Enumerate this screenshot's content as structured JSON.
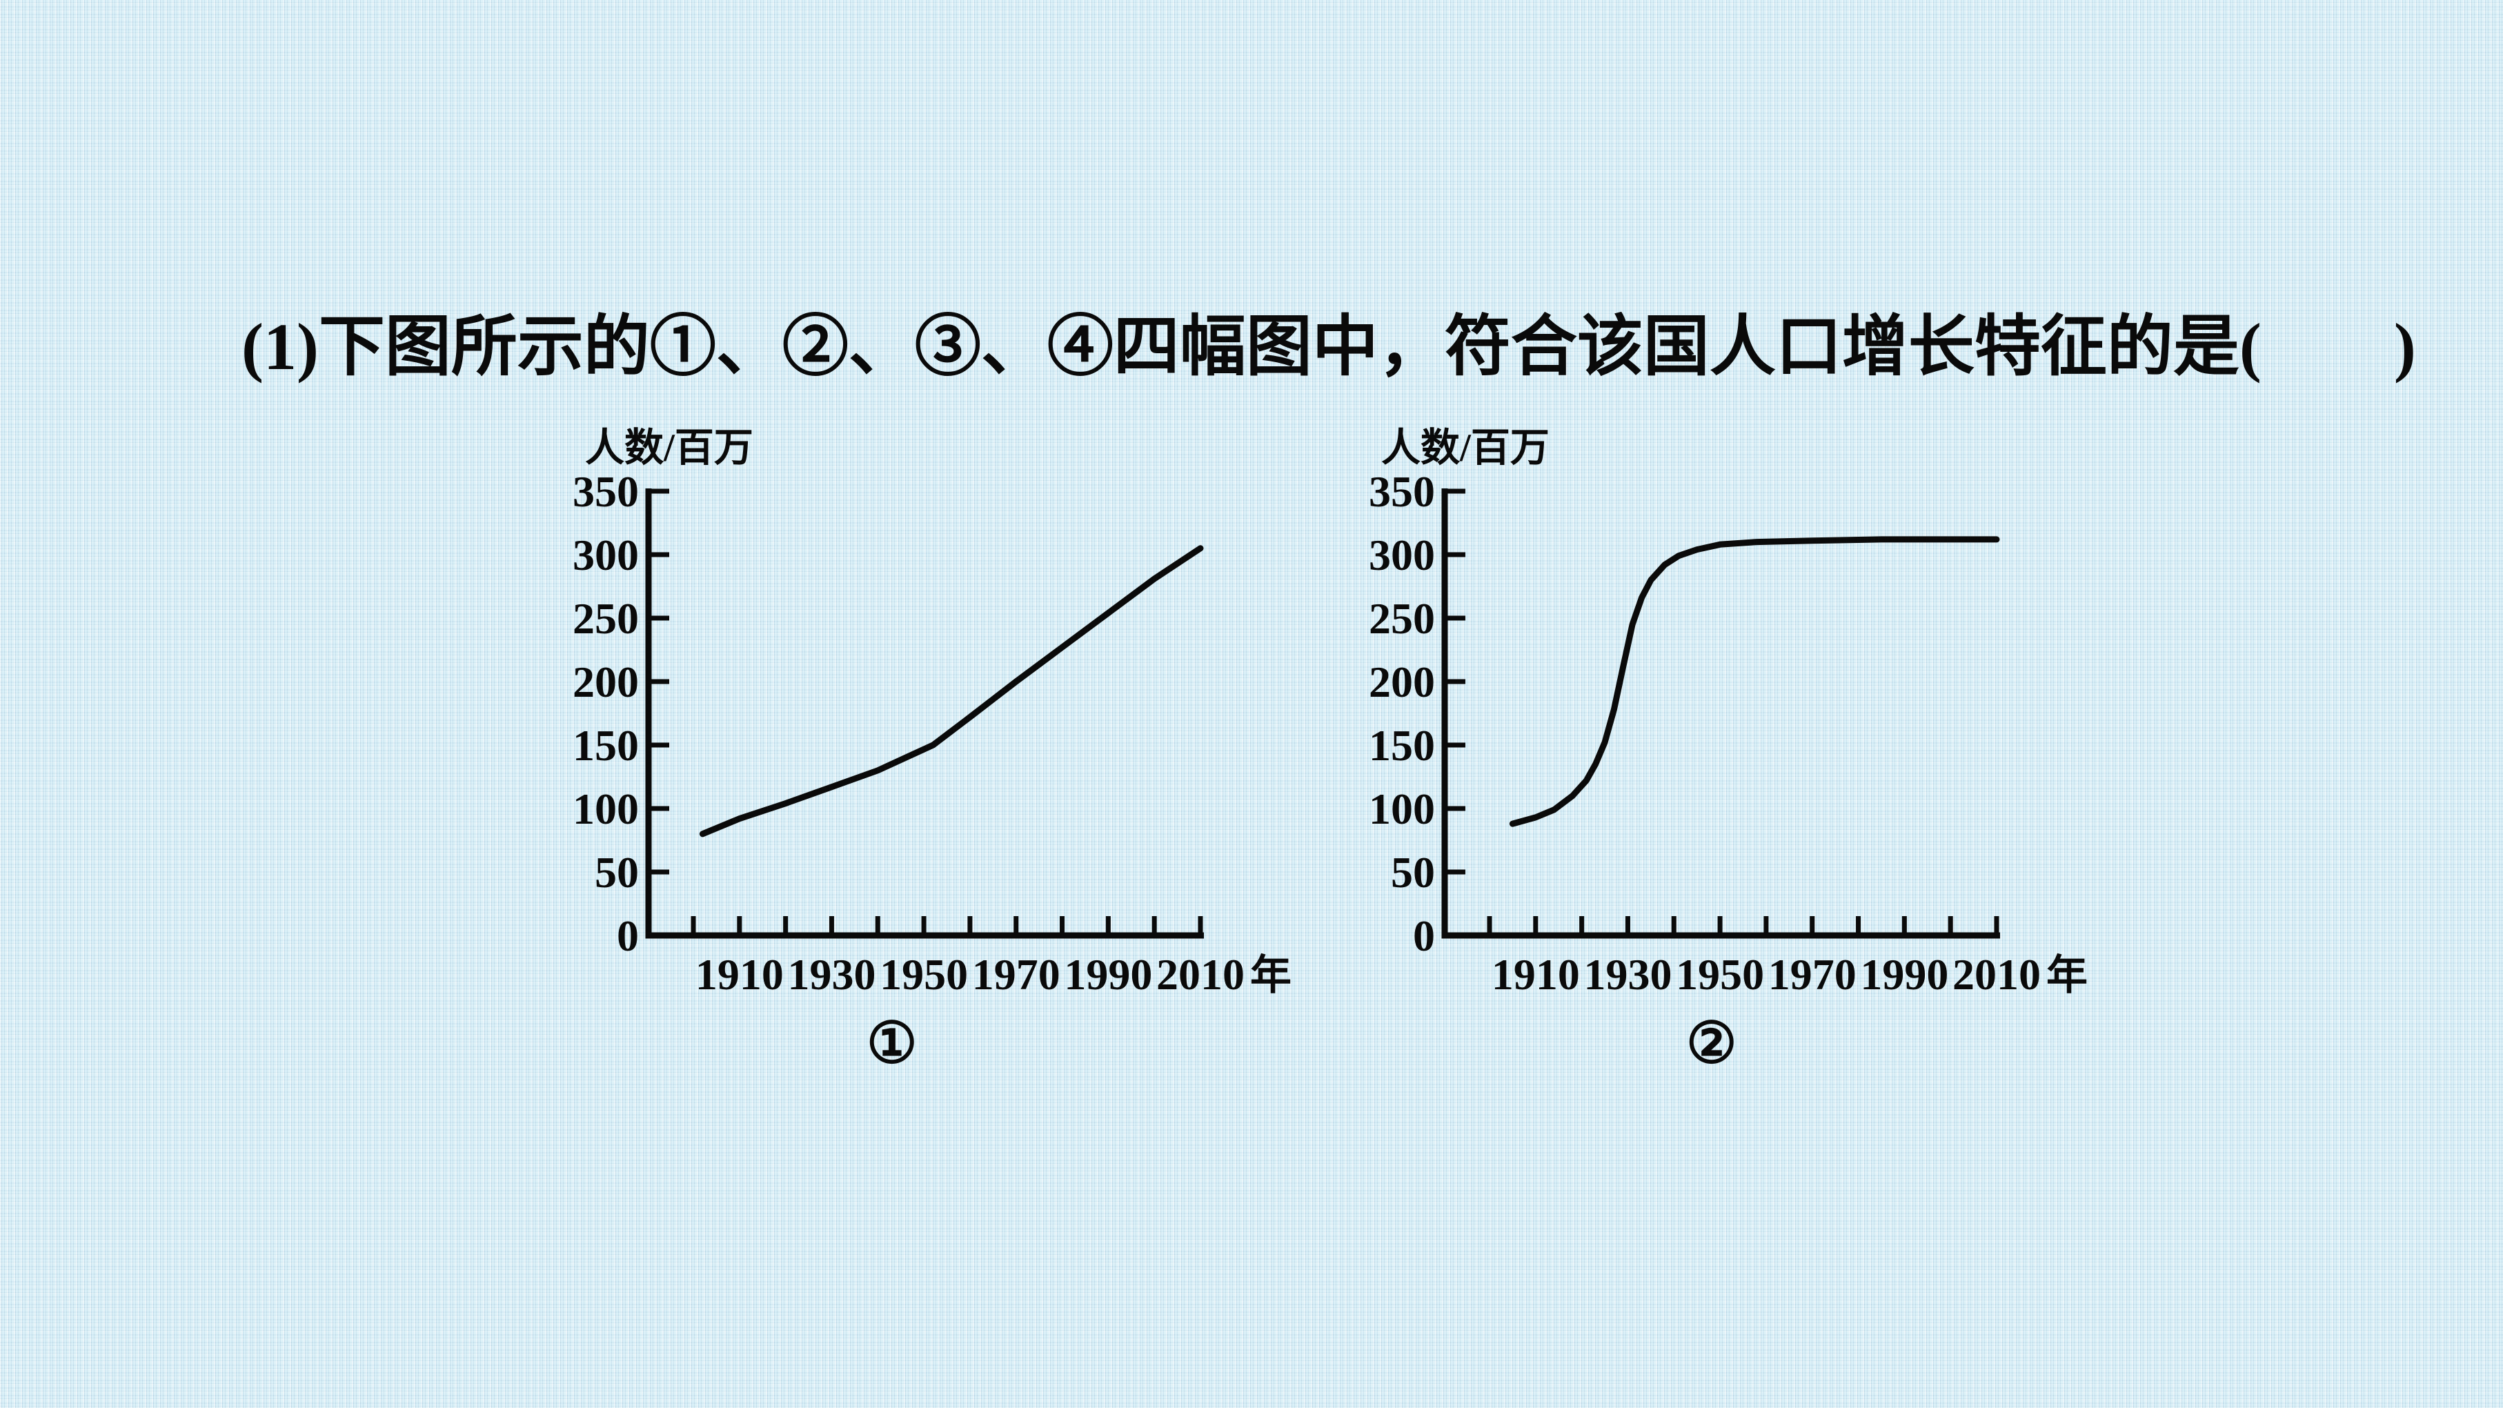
{
  "title": "(1)下图所示的①、②、③、④四幅图中，符合该国人口增长特征的是(　　)",
  "colors": {
    "background": "#cde7f2",
    "ink": "#0a0a0a"
  },
  "chart_data": [
    {
      "type": "line",
      "title": "①",
      "ylabel": "人数/百万",
      "xlabel": "年",
      "xlim": [
        1900,
        2010
      ],
      "ylim": [
        0,
        350
      ],
      "grid": false,
      "legend": "none",
      "y_ticks": [
        0,
        50,
        100,
        150,
        200,
        250,
        300,
        350
      ],
      "x_ticks": [
        1900,
        1910,
        1920,
        1930,
        1940,
        1950,
        1960,
        1970,
        1980,
        1990,
        2000,
        2010
      ],
      "x_ticks_labeled": [
        1910,
        1930,
        1950,
        1970,
        1990,
        2010
      ],
      "x": [
        1902,
        1910,
        1920,
        1930,
        1940,
        1946,
        1952,
        1960,
        1970,
        1980,
        1990,
        2000,
        2010
      ],
      "values": [
        80,
        92,
        104,
        117,
        130,
        140,
        150,
        172,
        200,
        227,
        254,
        281,
        305
      ],
      "shape_note": "near-linear growth, slope increases slightly after about 1950"
    },
    {
      "type": "line",
      "title": "②",
      "ylabel": "人数/百万",
      "xlabel": "年",
      "xlim": [
        1900,
        2010
      ],
      "ylim": [
        0,
        350
      ],
      "grid": false,
      "legend": "none",
      "y_ticks": [
        0,
        50,
        100,
        150,
        200,
        250,
        300,
        350
      ],
      "x_ticks": [
        1900,
        1910,
        1920,
        1930,
        1940,
        1950,
        1960,
        1970,
        1980,
        1990,
        2000,
        2010
      ],
      "x_ticks_labeled": [
        1910,
        1930,
        1950,
        1970,
        1990,
        2010
      ],
      "x": [
        1905,
        1910,
        1914,
        1918,
        1921,
        1923,
        1925,
        1927,
        1929,
        1931,
        1933,
        1935,
        1938,
        1941,
        1945,
        1950,
        1958,
        1970,
        1985,
        2010
      ],
      "values": [
        88,
        93,
        99,
        110,
        122,
        135,
        152,
        178,
        212,
        245,
        266,
        280,
        292,
        299,
        304,
        308,
        310,
        311,
        312,
        312
      ],
      "shape_note": "S-shaped logistic curve: slow growth to ~1920, rapid growth 1920-1940, plateau near 312 after 1950"
    }
  ]
}
